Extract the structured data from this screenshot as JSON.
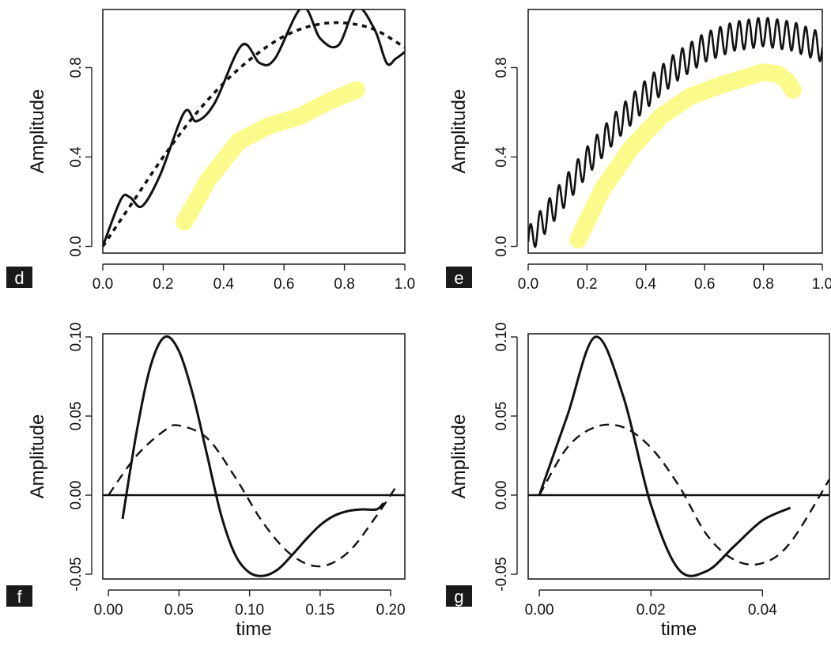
{
  "chart_data": [
    {
      "panel": "d",
      "type": "line",
      "xlabel": "",
      "ylabel": "Amplitude",
      "xlim": [
        0,
        1
      ],
      "ylim": [
        -0.03,
        1.06
      ],
      "xticks": [
        0.0,
        0.2,
        0.4,
        0.6,
        0.8,
        1.0
      ],
      "yticks": [
        0.0,
        0.4,
        0.8
      ],
      "xtick_labels": [
        "0.0",
        "0.2",
        "0.4",
        "0.6",
        "0.8",
        "1.0"
      ],
      "ytick_labels": [
        "0.0",
        "0.4",
        "0.8"
      ],
      "band": {
        "color": "#fbfb8c",
        "x": [
          0.27,
          0.35,
          0.45,
          0.55,
          0.65,
          0.75,
          0.84
        ],
        "y": [
          0.11,
          0.3,
          0.47,
          0.54,
          0.58,
          0.65,
          0.7
        ]
      },
      "series": [
        {
          "style": "solid",
          "x": [
            0.0,
            0.06,
            0.09,
            0.13,
            0.19,
            0.27,
            0.31,
            0.37,
            0.46,
            0.52,
            0.57,
            0.66,
            0.72,
            0.78,
            0.84,
            0.9,
            0.94,
            0.97,
            1.0
          ],
          "y": [
            0.0,
            0.21,
            0.22,
            0.18,
            0.32,
            0.6,
            0.56,
            0.64,
            0.9,
            0.82,
            0.84,
            1.07,
            0.93,
            0.9,
            1.07,
            0.97,
            0.82,
            0.84,
            0.87
          ]
        },
        {
          "style": "dotted",
          "x": [
            0.0,
            0.1,
            0.2,
            0.3,
            0.4,
            0.5,
            0.6,
            0.7,
            0.8,
            0.9,
            1.0
          ],
          "y": [
            0.0,
            0.2,
            0.4,
            0.58,
            0.73,
            0.85,
            0.94,
            0.99,
            1.0,
            0.97,
            0.89
          ]
        }
      ]
    },
    {
      "panel": "e",
      "type": "line",
      "xlabel": "",
      "ylabel": "Amplitude",
      "xlim": [
        0,
        1
      ],
      "ylim": [
        -0.03,
        1.06
      ],
      "xticks": [
        0.0,
        0.2,
        0.4,
        0.6,
        0.8,
        1.0
      ],
      "yticks": [
        0.0,
        0.4,
        0.8
      ],
      "xtick_labels": [
        "0.0",
        "0.2",
        "0.4",
        "0.6",
        "0.8",
        "1.0"
      ],
      "ytick_labels": [
        "0.0",
        "0.4",
        "0.8"
      ],
      "band": {
        "color": "#fbfb8c",
        "x": [
          0.17,
          0.25,
          0.35,
          0.45,
          0.55,
          0.65,
          0.75,
          0.8,
          0.85,
          0.88,
          0.9
        ],
        "y": [
          0.03,
          0.25,
          0.44,
          0.58,
          0.67,
          0.72,
          0.76,
          0.78,
          0.77,
          0.74,
          0.7
        ]
      },
      "series": [
        {
          "style": "solid",
          "oscillating": true,
          "x": [
            0.0,
            0.1,
            0.2,
            0.3,
            0.4,
            0.5,
            0.6,
            0.7,
            0.8,
            0.9,
            1.0
          ],
          "y": [
            0.02,
            0.2,
            0.38,
            0.54,
            0.68,
            0.8,
            0.89,
            0.94,
            0.96,
            0.94,
            0.89
          ],
          "amplitude": 0.065,
          "cycles": 31
        }
      ]
    },
    {
      "panel": "f",
      "type": "line",
      "xlabel": "time",
      "ylabel": "Amplitude",
      "xlim": [
        -0.004,
        0.21
      ],
      "ylim": [
        -0.053,
        0.102
      ],
      "xticks": [
        0.0,
        0.05,
        0.1,
        0.15,
        0.2
      ],
      "yticks": [
        -0.05,
        0.0,
        0.05,
        0.1
      ],
      "xtick_labels": [
        "0.00",
        "0.05",
        "0.10",
        "0.15",
        "0.20"
      ],
      "ytick_labels": [
        "-0.05",
        "0.00",
        "0.05",
        "0.10"
      ],
      "zero_line": true,
      "series": [
        {
          "style": "solid",
          "x": [
            0.01,
            0.02,
            0.03,
            0.04,
            0.05,
            0.06,
            0.07,
            0.08,
            0.09,
            0.1,
            0.11,
            0.12,
            0.13,
            0.14,
            0.15,
            0.16,
            0.17,
            0.18,
            0.19,
            0.195
          ],
          "y": [
            -0.015,
            0.04,
            0.082,
            0.1,
            0.091,
            0.063,
            0.025,
            -0.013,
            -0.038,
            -0.049,
            -0.051,
            -0.047,
            -0.038,
            -0.028,
            -0.019,
            -0.013,
            -0.01,
            -0.009,
            -0.009,
            -0.005
          ]
        },
        {
          "style": "dashed",
          "x": [
            0.0,
            0.02,
            0.04,
            0.05,
            0.07,
            0.09,
            0.11,
            0.13,
            0.15,
            0.17,
            0.19,
            0.205
          ],
          "y": [
            0.0,
            0.025,
            0.041,
            0.044,
            0.036,
            0.011,
            -0.018,
            -0.038,
            -0.045,
            -0.036,
            -0.013,
            0.007
          ]
        }
      ]
    },
    {
      "panel": "g",
      "type": "line",
      "xlabel": "time",
      "ylabel": "Amplitude",
      "xlim": [
        -0.002,
        0.052
      ],
      "ylim": [
        -0.053,
        0.102
      ],
      "xticks": [
        0.0,
        0.02,
        0.04
      ],
      "yticks": [
        -0.05,
        0.0,
        0.05,
        0.1
      ],
      "xtick_labels": [
        "0.00",
        "0.02",
        "0.04"
      ],
      "ytick_labels": [
        "-0.05",
        "0.00",
        "0.05",
        "0.10"
      ],
      "zero_line": true,
      "series": [
        {
          "style": "solid",
          "x": [
            0.0,
            0.005,
            0.01,
            0.015,
            0.02,
            0.025,
            0.03,
            0.035,
            0.04,
            0.045
          ],
          "y": [
            0.0,
            0.05,
            0.1,
            0.063,
            -0.006,
            -0.047,
            -0.048,
            -0.032,
            -0.016,
            -0.008
          ]
        },
        {
          "style": "dashed",
          "x": [
            0.0,
            0.005,
            0.01,
            0.015,
            0.02,
            0.025,
            0.03,
            0.035,
            0.04,
            0.045,
            0.052
          ],
          "y": [
            0.0,
            0.03,
            0.043,
            0.043,
            0.03,
            0.006,
            -0.025,
            -0.041,
            -0.043,
            -0.03,
            0.01
          ]
        }
      ]
    }
  ]
}
